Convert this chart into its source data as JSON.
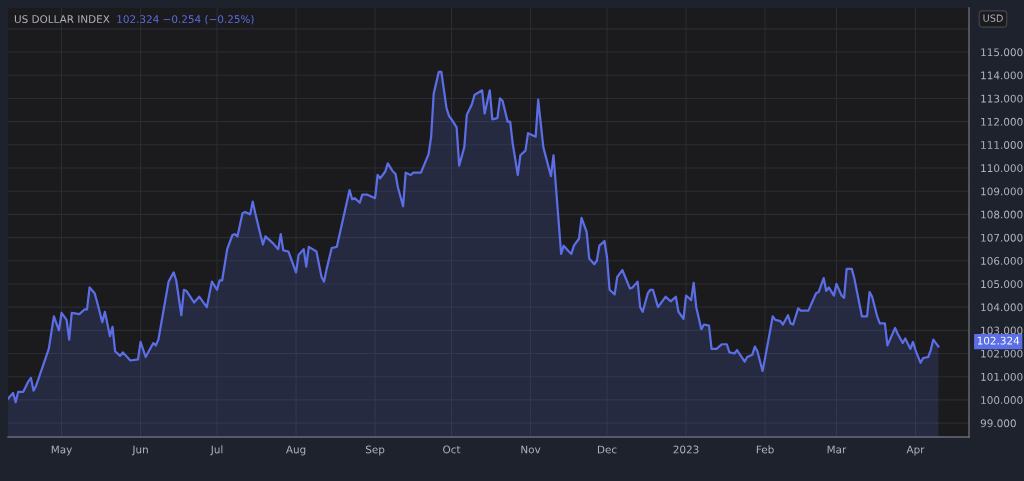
{
  "chart_data": {
    "type": "area",
    "title": "US DOLLAR INDEX",
    "subtitle": "102.324 −0.254 (−0.25%)",
    "ylabel": "USD",
    "x": [
      "2022-04-10",
      "2022-04-12",
      "2022-04-13",
      "2022-04-14",
      "2022-04-16",
      "2022-04-18",
      "2022-04-19",
      "2022-04-20",
      "2022-04-21",
      "2022-04-26",
      "2022-04-28",
      "2022-04-30",
      "2022-05-01",
      "2022-05-03",
      "2022-05-04",
      "2022-05-05",
      "2022-05-08",
      "2022-05-10",
      "2022-05-11",
      "2022-05-12",
      "2022-05-14",
      "2022-05-15",
      "2022-05-17",
      "2022-05-18",
      "2022-05-20",
      "2022-05-21",
      "2022-05-22",
      "2022-05-24",
      "2022-05-25",
      "2022-05-28",
      "2022-05-31",
      "2022-06-01",
      "2022-06-03",
      "2022-06-06",
      "2022-06-07",
      "2022-06-08",
      "2022-06-12",
      "2022-06-14",
      "2022-06-15",
      "2022-06-17",
      "2022-06-18",
      "2022-06-19",
      "2022-06-22",
      "2022-06-24",
      "2022-06-27",
      "2022-06-29",
      "2022-07-01",
      "2022-07-02",
      "2022-07-03",
      "2022-07-05",
      "2022-07-07",
      "2022-07-08",
      "2022-07-09",
      "2022-07-11",
      "2022-07-12",
      "2022-07-14",
      "2022-07-15",
      "2022-07-16",
      "2022-07-19",
      "2022-07-20",
      "2022-07-23",
      "2022-07-25",
      "2022-07-26",
      "2022-07-27",
      "2022-07-29",
      "2022-08-01",
      "2022-08-02",
      "2022-08-04",
      "2022-08-05",
      "2022-08-06",
      "2022-08-09",
      "2022-08-11",
      "2022-08-12",
      "2022-08-13",
      "2022-08-15",
      "2022-08-17",
      "2022-08-22",
      "2022-08-23",
      "2022-08-24",
      "2022-08-26",
      "2022-08-27",
      "2022-08-29",
      "2022-09-01",
      "2022-09-02",
      "2022-09-03",
      "2022-09-05",
      "2022-09-06",
      "2022-09-08",
      "2022-09-09",
      "2022-09-10",
      "2022-09-12",
      "2022-09-13",
      "2022-09-15",
      "2022-09-16",
      "2022-09-19",
      "2022-09-22",
      "2022-09-23",
      "2022-09-24",
      "2022-09-26",
      "2022-09-27",
      "2022-09-29",
      "2022-09-30",
      "2022-10-01",
      "2022-10-03",
      "2022-10-04",
      "2022-10-06",
      "2022-10-07",
      "2022-10-09",
      "2022-10-10",
      "2022-10-13",
      "2022-10-14",
      "2022-10-16",
      "2022-10-17",
      "2022-10-19",
      "2022-10-20",
      "2022-10-21",
      "2022-10-23",
      "2022-10-24",
      "2022-10-25",
      "2022-10-27",
      "2022-10-28",
      "2022-10-30",
      "2022-10-31",
      "2022-11-03",
      "2022-11-04",
      "2022-11-06",
      "2022-11-09",
      "2022-11-10",
      "2022-11-13",
      "2022-11-14",
      "2022-11-16",
      "2022-11-17",
      "2022-11-18",
      "2022-11-20",
      "2022-11-21",
      "2022-11-23",
      "2022-11-24",
      "2022-11-26",
      "2022-11-27",
      "2022-11-28",
      "2022-11-30",
      "2022-12-01",
      "2022-12-02",
      "2022-12-04",
      "2022-12-05",
      "2022-12-07",
      "2022-12-10",
      "2022-12-11",
      "2022-12-13",
      "2022-12-14",
      "2022-12-15",
      "2022-12-17",
      "2022-12-18",
      "2022-12-19",
      "2022-12-21",
      "2022-12-24",
      "2022-12-26",
      "2022-12-28",
      "2022-12-29",
      "2022-12-31",
      "2023-01-01",
      "2023-01-03",
      "2023-01-04",
      "2023-01-05",
      "2023-01-07",
      "2023-01-08",
      "2023-01-10",
      "2023-01-11",
      "2023-01-13",
      "2023-01-15",
      "2023-01-17",
      "2023-01-18",
      "2023-01-20",
      "2023-01-21",
      "2023-01-24",
      "2023-01-25",
      "2023-01-27",
      "2023-01-28",
      "2023-01-29",
      "2023-01-31",
      "2023-02-01",
      "2023-02-03",
      "2023-02-04",
      "2023-02-05",
      "2023-02-07",
      "2023-02-08",
      "2023-02-10",
      "2023-02-11",
      "2023-02-12",
      "2023-02-14",
      "2023-02-15",
      "2023-02-18",
      "2023-02-21",
      "2023-02-22",
      "2023-02-24",
      "2023-02-25",
      "2023-02-26",
      "2023-02-28",
      "2023-03-01",
      "2023-03-03",
      "2023-03-04",
      "2023-03-05",
      "2023-03-07",
      "2023-03-08",
      "2023-03-11",
      "2023-03-13",
      "2023-03-14",
      "2023-03-15",
      "2023-03-17",
      "2023-03-18",
      "2023-03-20",
      "2023-03-21",
      "2023-03-22",
      "2023-03-24",
      "2023-03-25",
      "2023-03-27",
      "2023-03-28",
      "2023-03-30",
      "2023-03-31",
      "2023-04-01",
      "2023-04-03",
      "2023-04-04",
      "2023-04-06",
      "2023-04-07",
      "2023-04-08",
      "2023-04-10"
    ],
    "series": [
      {
        "color": "#5b6ee6",
        "values": [
          100.05,
          100.3,
          99.9,
          100.35,
          100.35,
          100.8,
          100.95,
          100.4,
          100.6,
          102.2,
          103.6,
          103.0,
          103.75,
          103.45,
          102.6,
          103.75,
          103.7,
          103.9,
          103.9,
          104.85,
          104.6,
          104.2,
          103.35,
          103.8,
          102.75,
          103.15,
          102.1,
          101.9,
          102.05,
          101.7,
          101.75,
          102.5,
          101.85,
          102.45,
          102.35,
          102.6,
          105.1,
          105.5,
          105.15,
          103.65,
          104.75,
          104.7,
          104.2,
          104.45,
          104.0,
          105.1,
          104.75,
          105.15,
          105.15,
          106.5,
          107.1,
          107.15,
          107.05,
          108.05,
          108.1,
          108.0,
          108.55,
          108.05,
          106.7,
          107.05,
          106.75,
          106.5,
          107.15,
          106.45,
          106.4,
          105.5,
          106.25,
          106.5,
          105.75,
          106.6,
          106.4,
          105.3,
          105.1,
          105.65,
          106.55,
          106.6,
          109.05,
          108.65,
          108.7,
          108.5,
          108.85,
          108.85,
          108.7,
          109.7,
          109.55,
          109.85,
          110.2,
          109.85,
          109.75,
          109.15,
          108.35,
          109.8,
          109.7,
          109.8,
          109.8,
          110.6,
          111.35,
          113.2,
          114.15,
          114.15,
          112.6,
          112.25,
          112.1,
          111.75,
          110.1,
          110.9,
          112.3,
          112.75,
          113.15,
          113.35,
          112.35,
          113.35,
          112.1,
          112.15,
          113.0,
          112.9,
          112.0,
          112.0,
          111.05,
          109.7,
          110.55,
          110.75,
          111.5,
          111.35,
          112.95,
          110.9,
          109.65,
          110.55,
          106.3,
          106.65,
          106.4,
          106.3,
          106.65,
          106.95,
          107.85,
          107.25,
          106.1,
          105.85,
          106.0,
          106.65,
          106.85,
          106.15,
          104.75,
          104.55,
          105.3,
          105.6,
          104.8,
          104.85,
          105.1,
          104.0,
          103.8,
          104.6,
          104.75,
          104.75,
          104.0,
          104.45,
          104.25,
          104.45,
          103.8,
          103.5,
          104.5,
          104.3,
          105.05,
          104.0,
          103.05,
          103.25,
          103.2,
          102.2,
          102.2,
          102.4,
          102.4,
          102.05,
          102.0,
          102.15,
          101.65,
          101.85,
          101.95,
          102.3,
          102.1,
          101.25,
          101.8,
          103.0,
          103.6,
          103.45,
          103.4,
          103.25,
          103.65,
          103.3,
          103.25,
          103.95,
          103.85,
          103.85,
          104.6,
          104.65,
          105.25,
          104.7,
          104.85,
          104.5,
          105.0,
          104.5,
          104.4,
          105.65,
          105.65,
          105.25,
          103.6,
          103.6,
          104.65,
          104.45,
          103.6,
          103.3,
          103.3,
          102.35,
          102.6,
          103.1,
          102.85,
          102.45,
          102.65,
          102.2,
          102.5,
          102.15,
          101.6,
          101.8,
          101.85,
          102.15,
          102.6,
          102.3
        ]
      }
    ],
    "xlim": [
      "2022-04-10",
      "2023-04-22"
    ],
    "xticks": [
      {
        "value": "2022-05-01",
        "label": "May"
      },
      {
        "value": "2022-06-01",
        "label": "Jun"
      },
      {
        "value": "2022-07-01",
        "label": "Jul"
      },
      {
        "value": "2022-08-01",
        "label": "Aug"
      },
      {
        "value": "2022-09-01",
        "label": "Sep"
      },
      {
        "value": "2022-10-01",
        "label": "Oct"
      },
      {
        "value": "2022-11-01",
        "label": "Nov"
      },
      {
        "value": "2022-12-01",
        "label": "Dec"
      },
      {
        "value": "2023-01-01",
        "label": "2023"
      },
      {
        "value": "2023-02-01",
        "label": "Feb"
      },
      {
        "value": "2023-03-01",
        "label": "Mar"
      },
      {
        "value": "2023-04-01",
        "label": "Apr"
      }
    ],
    "ylim": [
      98.4,
      116.9
    ],
    "yticks": [
      {
        "value": 99,
        "label": "99.000"
      },
      {
        "value": 100,
        "label": "100.000"
      },
      {
        "value": 101,
        "label": "101.000"
      },
      {
        "value": 102,
        "label": "102.000"
      },
      {
        "value": 103,
        "label": "103.000"
      },
      {
        "value": 104,
        "label": "104.000"
      },
      {
        "value": 105,
        "label": "105.000"
      },
      {
        "value": 106,
        "label": "106.000"
      },
      {
        "value": 107,
        "label": "107.000"
      },
      {
        "value": 108,
        "label": "108.000"
      },
      {
        "value": 109,
        "label": "109.000"
      },
      {
        "value": 110,
        "label": "110.000"
      },
      {
        "value": 111,
        "label": "111.000"
      },
      {
        "value": 112,
        "label": "112.000"
      },
      {
        "value": 113,
        "label": "113.000"
      },
      {
        "value": 114,
        "label": "114.000"
      },
      {
        "value": 115,
        "label": "115.000"
      },
      {
        "value": 116,
        "label": null
      }
    ],
    "annotations": [
      "102.324"
    ],
    "grid": true,
    "marker": "none",
    "line_style": "solid"
  }
}
